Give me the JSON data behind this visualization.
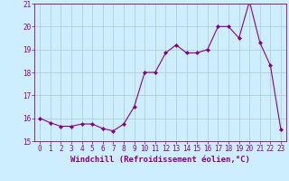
{
  "x": [
    0,
    1,
    2,
    3,
    4,
    5,
    6,
    7,
    8,
    9,
    10,
    11,
    12,
    13,
    14,
    15,
    16,
    17,
    18,
    19,
    20,
    21,
    22,
    23
  ],
  "y": [
    16.0,
    15.8,
    15.65,
    15.65,
    15.75,
    15.75,
    15.55,
    15.45,
    15.75,
    16.5,
    18.0,
    18.0,
    18.85,
    19.2,
    18.85,
    18.85,
    19.0,
    20.0,
    20.0,
    19.5,
    21.1,
    19.3,
    18.3,
    15.5
  ],
  "ylim": [
    15,
    21
  ],
  "yticks": [
    15,
    16,
    17,
    18,
    19,
    20,
    21
  ],
  "xticks": [
    0,
    1,
    2,
    3,
    4,
    5,
    6,
    7,
    8,
    9,
    10,
    11,
    12,
    13,
    14,
    15,
    16,
    17,
    18,
    19,
    20,
    21,
    22,
    23
  ],
  "line_color": "#880088",
  "marker": "D",
  "marker_size": 2.0,
  "bg_color": "#cceeff",
  "grid_color": "#aacccc",
  "xlabel": "Windchill (Refroidissement éolien,°C)",
  "xlabel_fontsize": 6.5,
  "tick_fontsize": 5.5,
  "figwidth": 3.2,
  "figheight": 2.0,
  "dpi": 100
}
